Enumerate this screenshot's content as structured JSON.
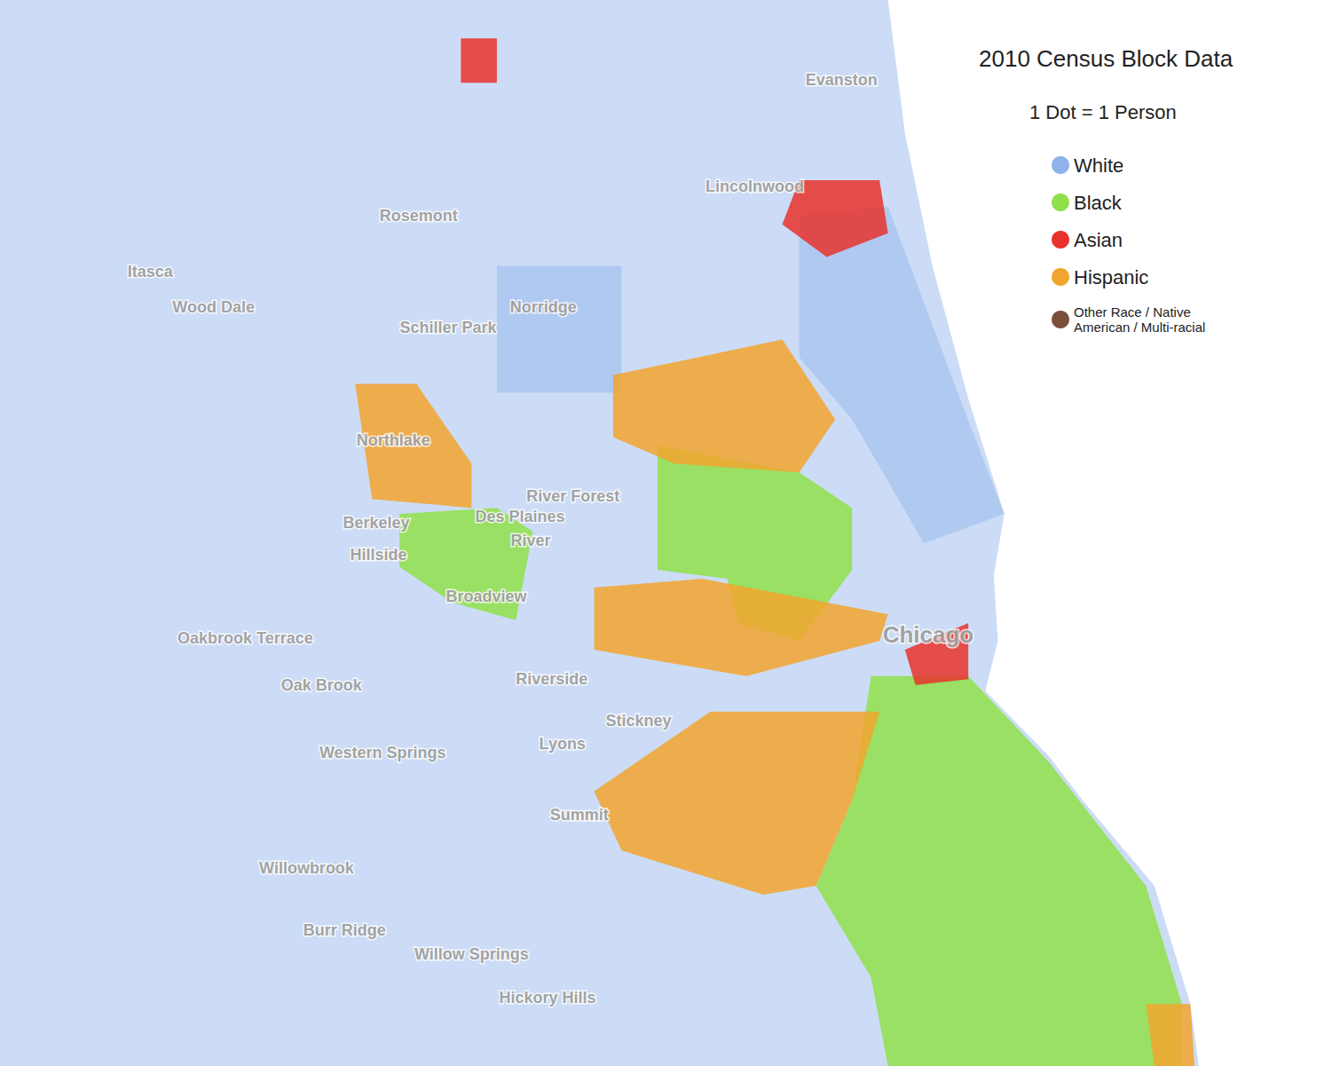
{
  "chart_data": {
    "type": "map",
    "title": "2010 Census Block Data",
    "subtitle": "1 Dot = 1 Person",
    "xlim": [
      -88.069,
      -87.439
    ],
    "ylim": [
      41.734,
      42.095
    ],
    "tick_labels": false,
    "grid": false,
    "legend": "top-right",
    "series": [
      {
        "name": "White",
        "color": "#8fb2ec",
        "regions": [
          [
            [
              -88.069,
              42.095
            ],
            [
              -87.649,
              42.095
            ],
            [
              -87.641,
              42.05
            ],
            [
              -87.628,
              42.005
            ],
            [
              -87.611,
              41.96
            ],
            [
              -87.594,
              41.921
            ],
            [
              -87.599,
              41.9
            ],
            [
              -87.597,
              41.878
            ],
            [
              -87.603,
              41.861
            ],
            [
              -87.573,
              41.839
            ],
            [
              -87.557,
              41.824
            ],
            [
              -87.523,
              41.795
            ],
            [
              -87.506,
              41.755
            ],
            [
              -87.502,
              41.734
            ],
            [
              -88.069,
              41.734
            ]
          ],
          [
            [
              -87.691,
              42.022
            ],
            [
              -87.649,
              42.025
            ],
            [
              -87.615,
              41.96
            ],
            [
              -87.594,
              41.921
            ],
            [
              -87.632,
              41.911
            ],
            [
              -87.666,
              41.953
            ],
            [
              -87.691,
              41.974
            ]
          ],
          [
            [
              -87.834,
              42.005
            ],
            [
              -87.775,
              42.005
            ],
            [
              -87.775,
              41.962
            ],
            [
              -87.834,
              41.962
            ]
          ]
        ]
      },
      {
        "name": "Black",
        "color": "#8fe04a",
        "regions": [
          [
            [
              -87.758,
              41.944
            ],
            [
              -87.691,
              41.935
            ],
            [
              -87.666,
              41.923
            ],
            [
              -87.666,
              41.902
            ],
            [
              -87.691,
              41.878
            ],
            [
              -87.72,
              41.884
            ],
            [
              -87.725,
              41.899
            ],
            [
              -87.758,
              41.902
            ]
          ],
          [
            [
              -87.88,
              41.921
            ],
            [
              -87.834,
              41.923
            ],
            [
              -87.817,
              41.915
            ],
            [
              -87.825,
              41.885
            ],
            [
              -87.855,
              41.891
            ],
            [
              -87.88,
              41.903
            ]
          ],
          [
            [
              -87.657,
              41.866
            ],
            [
              -87.611,
              41.866
            ],
            [
              -87.573,
              41.837
            ],
            [
              -87.527,
              41.795
            ],
            [
              -87.51,
              41.755
            ],
            [
              -87.51,
              41.734
            ],
            [
              -87.649,
              41.734
            ],
            [
              -87.657,
              41.764
            ],
            [
              -87.683,
              41.795
            ],
            [
              -87.666,
              41.824
            ]
          ]
        ]
      },
      {
        "name": "Asian",
        "color": "#e8322b",
        "regions": [
          [
            [
              -87.641,
              41.875
            ],
            [
              -87.611,
              41.884
            ],
            [
              -87.611,
              41.865
            ],
            [
              -87.636,
              41.863
            ]
          ],
          [
            [
              -87.691,
              42.034
            ],
            [
              -87.653,
              42.034
            ],
            [
              -87.649,
              42.016
            ],
            [
              -87.678,
              42.008
            ],
            [
              -87.699,
              42.019
            ]
          ],
          [
            [
              -87.851,
              42.082
            ],
            [
              -87.834,
              42.082
            ],
            [
              -87.834,
              42.067
            ],
            [
              -87.851,
              42.067
            ]
          ]
        ]
      },
      {
        "name": "Hispanic",
        "color": "#f2a52e",
        "regions": [
          [
            [
              -87.779,
              41.968
            ],
            [
              -87.699,
              41.98
            ],
            [
              -87.674,
              41.953
            ],
            [
              -87.691,
              41.935
            ],
            [
              -87.75,
              41.938
            ],
            [
              -87.779,
              41.947
            ]
          ],
          [
            [
              -87.788,
              41.896
            ],
            [
              -87.737,
              41.899
            ],
            [
              -87.649,
              41.887
            ],
            [
              -87.653,
              41.878
            ],
            [
              -87.716,
              41.866
            ],
            [
              -87.788,
              41.875
            ]
          ],
          [
            [
              -87.788,
              41.827
            ],
            [
              -87.733,
              41.854
            ],
            [
              -87.653,
              41.854
            ],
            [
              -87.666,
              41.824
            ],
            [
              -87.683,
              41.795
            ],
            [
              -87.708,
              41.792
            ],
            [
              -87.775,
              41.807
            ]
          ],
          [
            [
              -87.901,
              41.965
            ],
            [
              -87.872,
              41.965
            ],
            [
              -87.846,
              41.938
            ],
            [
              -87.846,
              41.923
            ],
            [
              -87.893,
              41.926
            ]
          ],
          [
            [
              -87.527,
              41.755
            ],
            [
              -87.506,
              41.755
            ],
            [
              -87.504,
              41.734
            ],
            [
              -87.523,
              41.734
            ]
          ]
        ]
      },
      {
        "name": "Other Race / Native American / Multi-racial",
        "color": "#7b4f3a",
        "regions": []
      }
    ],
    "city": {
      "label": "Chicago",
      "lon": -87.63,
      "lat": 41.88
    },
    "places": [
      {
        "label": "Evanston",
        "lon": -87.671,
        "lat": 42.068
      },
      {
        "label": "Lincolnwood",
        "lon": -87.712,
        "lat": 42.032
      },
      {
        "label": "Rosemont",
        "lon": -87.871,
        "lat": 42.022
      },
      {
        "label": "Itasca",
        "lon": -87.998,
        "lat": 42.003
      },
      {
        "label": "Wood Dale",
        "lon": -87.968,
        "lat": 41.991
      },
      {
        "label": "Norridge",
        "lon": -87.812,
        "lat": 41.991
      },
      {
        "label": "Schiller Park",
        "lon": -87.857,
        "lat": 41.984
      },
      {
        "label": "Northlake",
        "lon": -87.883,
        "lat": 41.946
      },
      {
        "label": "River Forest",
        "lon": -87.798,
        "lat": 41.927
      },
      {
        "label": "Des Plaines",
        "lon": -87.823,
        "lat": 41.92
      },
      {
        "label": "River",
        "lon": -87.818,
        "lat": 41.912
      },
      {
        "label": "Berkeley",
        "lon": -87.891,
        "lat": 41.918
      },
      {
        "label": "Hillside",
        "lon": -87.89,
        "lat": 41.907
      },
      {
        "label": "Broadview",
        "lon": -87.839,
        "lat": 41.893
      },
      {
        "label": "Oakbrook Terrace",
        "lon": -87.953,
        "lat": 41.879
      },
      {
        "label": "Oak Brook",
        "lon": -87.917,
        "lat": 41.863
      },
      {
        "label": "Riverside",
        "lon": -87.808,
        "lat": 41.865
      },
      {
        "label": "Stickney",
        "lon": -87.767,
        "lat": 41.851
      },
      {
        "label": "Lyons",
        "lon": -87.803,
        "lat": 41.843
      },
      {
        "label": "Western Springs",
        "lon": -87.888,
        "lat": 41.84
      },
      {
        "label": "Summit",
        "lon": -87.795,
        "lat": 41.819
      },
      {
        "label": "Willowbrook",
        "lon": -87.924,
        "lat": 41.801
      },
      {
        "label": "Burr Ridge",
        "lon": -87.906,
        "lat": 41.78
      },
      {
        "label": "Willow Springs",
        "lon": -87.846,
        "lat": 41.772
      },
      {
        "label": "Hickory Hills",
        "lon": -87.81,
        "lat": 41.757
      }
    ]
  }
}
